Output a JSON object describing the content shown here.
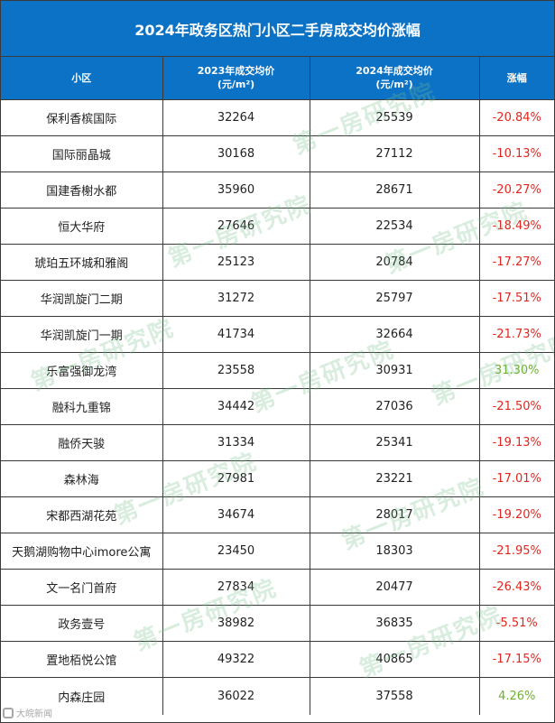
{
  "title": "2024年政务区热门小区二手房成交均价涨幅",
  "headers": {
    "col1": "小区",
    "col2_line1": "2023年成交均价",
    "col2_line2": "(元/m²)",
    "col3_line1": "2024年成交均价",
    "col3_line2": "(元/m²)",
    "col4": "涨幅"
  },
  "rows": [
    {
      "name": "保利香槟国际",
      "p2023": "32264",
      "p2024": "25539",
      "change": "-20.84%",
      "dir": "neg"
    },
    {
      "name": "国际丽晶城",
      "p2023": "30168",
      "p2024": "27112",
      "change": "-10.13%",
      "dir": "neg"
    },
    {
      "name": "国建香榭水都",
      "p2023": "35960",
      "p2024": "28671",
      "change": "-20.27%",
      "dir": "neg"
    },
    {
      "name": "恒大华府",
      "p2023": "27646",
      "p2024": "22534",
      "change": "-18.49%",
      "dir": "neg"
    },
    {
      "name": "琥珀五环城和雅阁",
      "p2023": "25123",
      "p2024": "20784",
      "change": "-17.27%",
      "dir": "neg"
    },
    {
      "name": "华润凯旋门二期",
      "p2023": "31272",
      "p2024": "25797",
      "change": "-17.51%",
      "dir": "neg"
    },
    {
      "name": "华润凯旋门一期",
      "p2023": "41734",
      "p2024": "32664",
      "change": "-21.73%",
      "dir": "neg"
    },
    {
      "name": "乐富强御龙湾",
      "p2023": "23558",
      "p2024": "30931",
      "change": "31.30%",
      "dir": "pos"
    },
    {
      "name": "融科九重锦",
      "p2023": "34442",
      "p2024": "27036",
      "change": "-21.50%",
      "dir": "neg"
    },
    {
      "name": "融侨天骏",
      "p2023": "31334",
      "p2024": "25341",
      "change": "-19.13%",
      "dir": "neg"
    },
    {
      "name": "森林海",
      "p2023": "27981",
      "p2024": "23221",
      "change": "-17.01%",
      "dir": "neg"
    },
    {
      "name": "宋都西湖花苑",
      "p2023": "34674",
      "p2024": "28017",
      "change": "-19.20%",
      "dir": "neg"
    },
    {
      "name": "天鹅湖购物中心imore公寓",
      "p2023": "23450",
      "p2024": "18303",
      "change": "-21.95%",
      "dir": "neg"
    },
    {
      "name": "文一名门首府",
      "p2023": "27834",
      "p2024": "20477",
      "change": "-26.43%",
      "dir": "neg"
    },
    {
      "name": "政务壹号",
      "p2023": "38982",
      "p2024": "36835",
      "change": "-5.51%",
      "dir": "neg"
    },
    {
      "name": "置地栢悦公馆",
      "p2023": "49322",
      "p2024": "40865",
      "change": "-17.15%",
      "dir": "neg"
    },
    {
      "name": "内森庄园",
      "p2023": "36022",
      "p2024": "37558",
      "change": "4.26%",
      "dir": "pos"
    }
  ],
  "colors": {
    "header_bg": "#0b72c6",
    "negative": "#e0271f",
    "positive": "#70b030"
  },
  "watermark": "第一房研究院",
  "corner_logo": "大皖新闻"
}
